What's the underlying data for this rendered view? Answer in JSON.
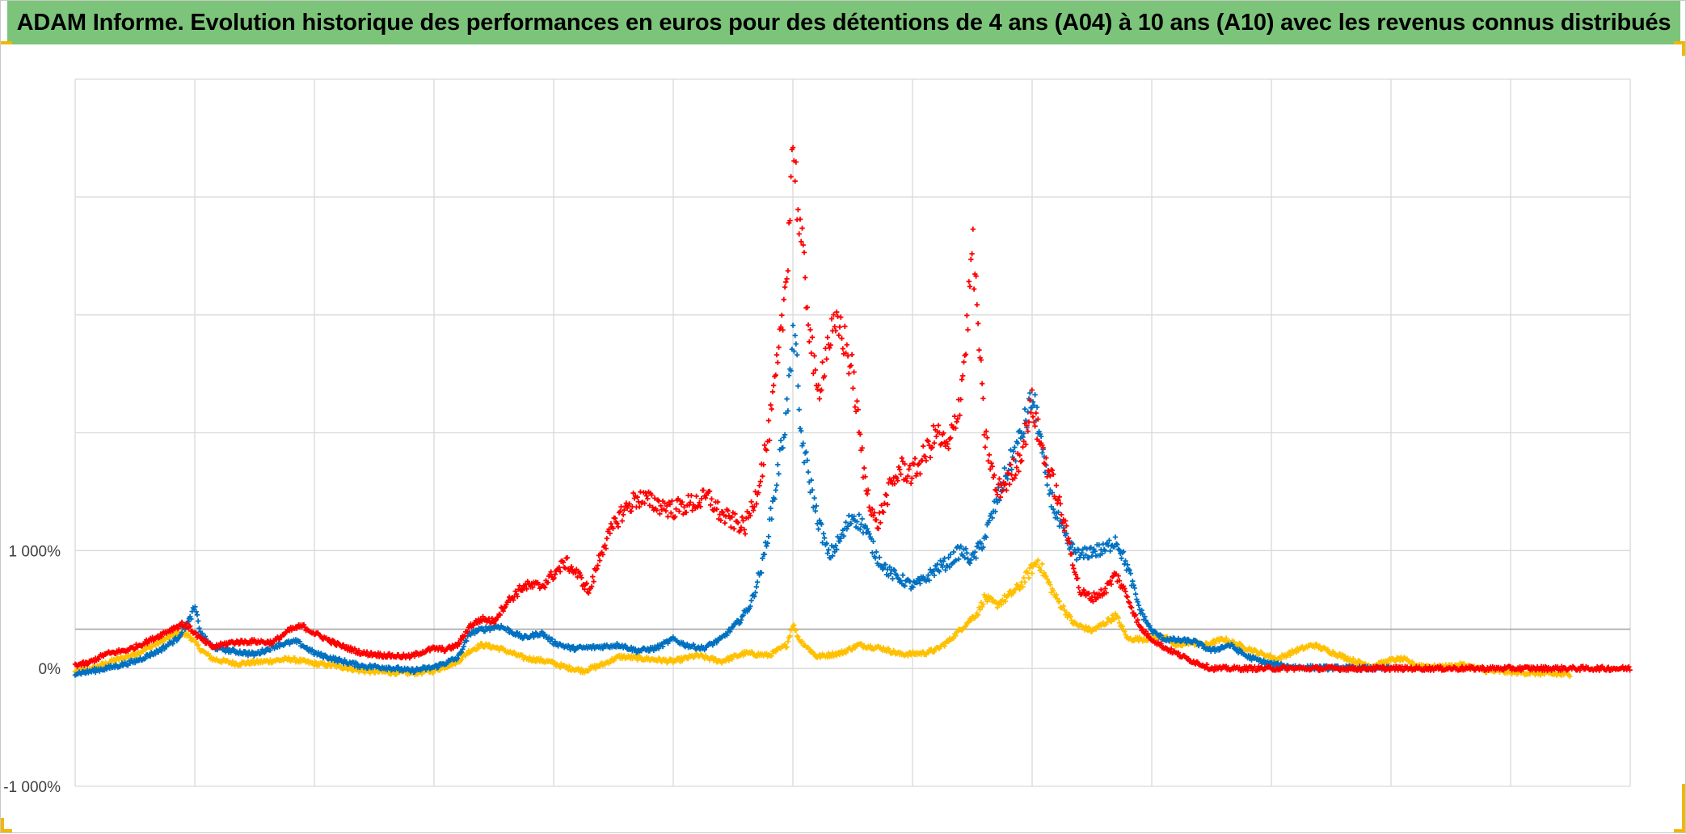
{
  "title": "ADAM Informe. Evolution historique des performances en euros pour des détentions de 4 ans (A04) à 10 ans (A10) avec les revenus connus distribués",
  "colors": {
    "title_background": "#7dc47b",
    "corner_accent": "#f2b705",
    "grid": "#d9d9d9"
  },
  "chart_data": {
    "type": "scatter",
    "marker": "plus",
    "x_axis": {
      "tick_labels_visible": false,
      "ticks": [
        0,
        1,
        2,
        3,
        4,
        5,
        6,
        7,
        8,
        9,
        10,
        11,
        12,
        13
      ],
      "range": [
        0,
        13
      ]
    },
    "y_axis": {
      "min": -1000,
      "max": 5000,
      "major_unit": 1000,
      "unit": "%",
      "tick_labels": [
        {
          "value": -1000,
          "label": "-1 000%"
        },
        {
          "value": 0,
          "label": "0%"
        },
        {
          "value": 1000,
          "label": "1 000%"
        }
      ]
    },
    "reference_line": {
      "y": 333
    },
    "grid": true,
    "legend": "none",
    "series": [
      {
        "color": "#ffc000",
        "points": [
          [
            0.0,
            -30
          ],
          [
            0.15,
            0
          ],
          [
            0.3,
            60
          ],
          [
            0.5,
            120
          ],
          [
            0.7,
            220
          ],
          [
            0.85,
            300
          ],
          [
            0.95,
            280
          ],
          [
            1.05,
            160
          ],
          [
            1.15,
            80
          ],
          [
            1.35,
            40
          ],
          [
            1.6,
            60
          ],
          [
            1.8,
            80
          ],
          [
            2.0,
            40
          ],
          [
            2.2,
            20
          ],
          [
            2.4,
            -20
          ],
          [
            2.6,
            -30
          ],
          [
            2.8,
            -40
          ],
          [
            3.0,
            -20
          ],
          [
            3.1,
            20
          ],
          [
            3.2,
            60
          ],
          [
            3.3,
            150
          ],
          [
            3.4,
            200
          ],
          [
            3.55,
            170
          ],
          [
            3.75,
            90
          ],
          [
            3.95,
            60
          ],
          [
            4.1,
            10
          ],
          [
            4.25,
            -20
          ],
          [
            4.4,
            30
          ],
          [
            4.55,
            100
          ],
          [
            4.8,
            80
          ],
          [
            5.0,
            60
          ],
          [
            5.2,
            110
          ],
          [
            5.4,
            60
          ],
          [
            5.6,
            130
          ],
          [
            5.8,
            110
          ],
          [
            5.95,
            200
          ],
          [
            6.0,
            380
          ],
          [
            6.05,
            250
          ],
          [
            6.2,
            100
          ],
          [
            6.4,
            130
          ],
          [
            6.55,
            200
          ],
          [
            6.75,
            170
          ],
          [
            6.9,
            120
          ],
          [
            7.1,
            130
          ],
          [
            7.2,
            160
          ],
          [
            7.3,
            230
          ],
          [
            7.45,
            380
          ],
          [
            7.55,
            480
          ],
          [
            7.6,
            600
          ],
          [
            7.7,
            540
          ],
          [
            7.8,
            610
          ],
          [
            7.9,
            700
          ],
          [
            8.0,
            850
          ],
          [
            8.05,
            920
          ],
          [
            8.1,
            800
          ],
          [
            8.2,
            600
          ],
          [
            8.35,
            380
          ],
          [
            8.5,
            320
          ],
          [
            8.6,
            380
          ],
          [
            8.7,
            450
          ],
          [
            8.8,
            250
          ],
          [
            8.95,
            250
          ],
          [
            9.1,
            280
          ],
          [
            9.2,
            190
          ],
          [
            9.3,
            220
          ],
          [
            9.45,
            200
          ],
          [
            9.6,
            250
          ],
          [
            9.75,
            190
          ],
          [
            9.9,
            130
          ],
          [
            10.05,
            80
          ],
          [
            10.2,
            150
          ],
          [
            10.35,
            200
          ],
          [
            10.5,
            140
          ],
          [
            10.6,
            100
          ],
          [
            10.7,
            60
          ],
          [
            10.85,
            20
          ],
          [
            11.0,
            70
          ],
          [
            11.1,
            80
          ],
          [
            11.2,
            30
          ],
          [
            11.4,
            10
          ],
          [
            11.6,
            30
          ],
          [
            11.8,
            -20
          ],
          [
            12.0,
            -30
          ],
          [
            12.2,
            -40
          ],
          [
            12.4,
            -50
          ],
          [
            12.5,
            -50
          ]
        ]
      },
      {
        "color": "#0070c0",
        "points": [
          [
            0.0,
            -40
          ],
          [
            0.1,
            -30
          ],
          [
            0.3,
            10
          ],
          [
            0.5,
            60
          ],
          [
            0.7,
            150
          ],
          [
            0.85,
            250
          ],
          [
            0.95,
            400
          ],
          [
            1.0,
            520
          ],
          [
            1.05,
            300
          ],
          [
            1.15,
            180
          ],
          [
            1.3,
            150
          ],
          [
            1.5,
            120
          ],
          [
            1.7,
            200
          ],
          [
            1.85,
            230
          ],
          [
            2.0,
            130
          ],
          [
            2.2,
            70
          ],
          [
            2.4,
            20
          ],
          [
            2.6,
            10
          ],
          [
            2.8,
            -20
          ],
          [
            3.0,
            10
          ],
          [
            3.1,
            50
          ],
          [
            3.2,
            90
          ],
          [
            3.3,
            300
          ],
          [
            3.4,
            330
          ],
          [
            3.55,
            360
          ],
          [
            3.75,
            260
          ],
          [
            3.9,
            300
          ],
          [
            4.0,
            220
          ],
          [
            4.15,
            170
          ],
          [
            4.35,
            180
          ],
          [
            4.55,
            200
          ],
          [
            4.7,
            150
          ],
          [
            4.85,
            170
          ],
          [
            5.0,
            250
          ],
          [
            5.1,
            200
          ],
          [
            5.25,
            170
          ],
          [
            5.4,
            250
          ],
          [
            5.55,
            400
          ],
          [
            5.65,
            550
          ],
          [
            5.75,
            900
          ],
          [
            5.85,
            1500
          ],
          [
            5.95,
            2200
          ],
          [
            6.02,
            2950
          ],
          [
            6.05,
            2100
          ],
          [
            6.1,
            1800
          ],
          [
            6.2,
            1300
          ],
          [
            6.3,
            950
          ],
          [
            6.4,
            1100
          ],
          [
            6.5,
            1300
          ],
          [
            6.6,
            1200
          ],
          [
            6.7,
            950
          ],
          [
            6.8,
            820
          ],
          [
            6.9,
            760
          ],
          [
            7.0,
            700
          ],
          [
            7.1,
            750
          ],
          [
            7.2,
            850
          ],
          [
            7.3,
            900
          ],
          [
            7.4,
            1000
          ],
          [
            7.5,
            920
          ],
          [
            7.6,
            1100
          ],
          [
            7.7,
            1400
          ],
          [
            7.8,
            1700
          ],
          [
            7.9,
            1950
          ],
          [
            8.0,
            2290
          ],
          [
            8.05,
            2100
          ],
          [
            8.1,
            1700
          ],
          [
            8.2,
            1300
          ],
          [
            8.3,
            1050
          ],
          [
            8.4,
            950
          ],
          [
            8.5,
            1000
          ],
          [
            8.6,
            1000
          ],
          [
            8.7,
            1100
          ],
          [
            8.8,
            850
          ],
          [
            8.9,
            500
          ],
          [
            9.0,
            320
          ],
          [
            9.1,
            250
          ],
          [
            9.2,
            240
          ],
          [
            9.35,
            230
          ],
          [
            9.5,
            150
          ],
          [
            9.65,
            200
          ],
          [
            9.8,
            100
          ],
          [
            9.95,
            50
          ],
          [
            10.1,
            20
          ],
          [
            10.25,
            10
          ],
          [
            10.4,
            5
          ],
          [
            10.6,
            5
          ],
          [
            10.8,
            0
          ],
          [
            11.0,
            0
          ]
        ]
      },
      {
        "color": "#ff0000",
        "points": [
          [
            0.0,
            30
          ],
          [
            0.1,
            40
          ],
          [
            0.25,
            120
          ],
          [
            0.45,
            160
          ],
          [
            0.65,
            250
          ],
          [
            0.8,
            330
          ],
          [
            0.9,
            380
          ],
          [
            0.95,
            350
          ],
          [
            1.05,
            250
          ],
          [
            1.15,
            180
          ],
          [
            1.3,
            220
          ],
          [
            1.5,
            230
          ],
          [
            1.65,
            220
          ],
          [
            1.8,
            330
          ],
          [
            1.9,
            360
          ],
          [
            2.0,
            300
          ],
          [
            2.2,
            200
          ],
          [
            2.4,
            130
          ],
          [
            2.6,
            110
          ],
          [
            2.8,
            100
          ],
          [
            2.9,
            140
          ],
          [
            3.0,
            170
          ],
          [
            3.1,
            160
          ],
          [
            3.2,
            200
          ],
          [
            3.3,
            360
          ],
          [
            3.4,
            420
          ],
          [
            3.5,
            400
          ],
          [
            3.6,
            550
          ],
          [
            3.75,
            700
          ],
          [
            3.9,
            700
          ],
          [
            4.0,
            800
          ],
          [
            4.1,
            900
          ],
          [
            4.2,
            800
          ],
          [
            4.3,
            650
          ],
          [
            4.4,
            1000
          ],
          [
            4.55,
            1300
          ],
          [
            4.7,
            1450
          ],
          [
            4.85,
            1400
          ],
          [
            5.0,
            1350
          ],
          [
            5.15,
            1400
          ],
          [
            5.3,
            1450
          ],
          [
            5.4,
            1300
          ],
          [
            5.5,
            1250
          ],
          [
            5.6,
            1200
          ],
          [
            5.7,
            1500
          ],
          [
            5.8,
            2000
          ],
          [
            5.9,
            2800
          ],
          [
            5.95,
            3400
          ],
          [
            6.0,
            4500
          ],
          [
            6.05,
            3800
          ],
          [
            6.1,
            3300
          ],
          [
            6.2,
            2300
          ],
          [
            6.3,
            2800
          ],
          [
            6.4,
            2900
          ],
          [
            6.5,
            2500
          ],
          [
            6.6,
            1600
          ],
          [
            6.7,
            1200
          ],
          [
            6.8,
            1500
          ],
          [
            6.9,
            1700
          ],
          [
            7.0,
            1650
          ],
          [
            7.1,
            1800
          ],
          [
            7.2,
            2000
          ],
          [
            7.3,
            1850
          ],
          [
            7.4,
            2300
          ],
          [
            7.45,
            2800
          ],
          [
            7.5,
            3600
          ],
          [
            7.55,
            2900
          ],
          [
            7.6,
            2000
          ],
          [
            7.7,
            1500
          ],
          [
            7.8,
            1600
          ],
          [
            7.9,
            1800
          ],
          [
            8.0,
            2250
          ],
          [
            8.05,
            2000
          ],
          [
            8.1,
            1800
          ],
          [
            8.2,
            1500
          ],
          [
            8.3,
            1100
          ],
          [
            8.4,
            650
          ],
          [
            8.5,
            600
          ],
          [
            8.6,
            650
          ],
          [
            8.7,
            800
          ],
          [
            8.8,
            600
          ],
          [
            8.9,
            350
          ],
          [
            9.0,
            250
          ],
          [
            9.1,
            180
          ],
          [
            9.2,
            130
          ],
          [
            9.3,
            80
          ],
          [
            9.4,
            40
          ],
          [
            9.5,
            0
          ],
          [
            9.7,
            0
          ],
          [
            10.0,
            0
          ],
          [
            10.5,
            0
          ],
          [
            11.0,
            0
          ],
          [
            11.5,
            0
          ],
          [
            12.0,
            0
          ],
          [
            12.5,
            0
          ],
          [
            13.0,
            0
          ]
        ]
      }
    ]
  }
}
